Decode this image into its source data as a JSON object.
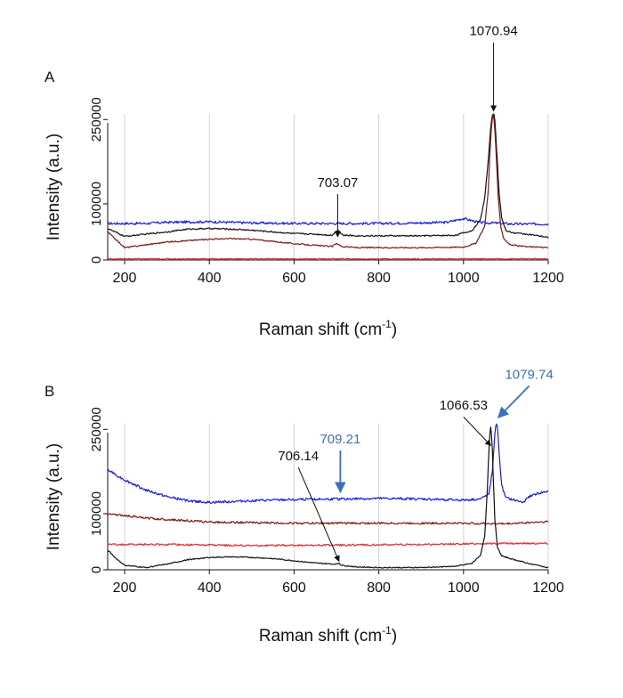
{
  "chart_data": [
    {
      "panel_label": "A",
      "type": "line",
      "xlabel": "Raman shift (cm",
      "xlabel_sup": "-1",
      "xlabel_end": ")",
      "ylabel": "Intensity (a.u.)",
      "xlim": [
        160,
        1200
      ],
      "ylim": [
        0,
        260000
      ],
      "x_ticks": [
        200,
        400,
        600,
        800,
        1000,
        1200
      ],
      "x_tick_labels": [
        "200",
        "400",
        "600",
        "800",
        "1000",
        "1200"
      ],
      "y_ticks": [
        0,
        100000,
        250000
      ],
      "y_tick_labels": [
        "0",
        "100000",
        "250000"
      ],
      "grid": "vertical",
      "series": [
        {
          "name": "blue",
          "color": "#1a1ad6",
          "x": [
            160,
            250,
            300,
            400,
            500,
            600,
            700,
            800,
            900,
            960,
            1000,
            1030,
            1050,
            1070,
            1090,
            1120,
            1150,
            1200
          ],
          "y": [
            65000,
            65000,
            67000,
            68000,
            66000,
            65000,
            65000,
            65000,
            66000,
            67000,
            74000,
            68000,
            66000,
            66000,
            65000,
            64000,
            64000,
            64000
          ],
          "noise": 2200
        },
        {
          "name": "black",
          "color": "#111111",
          "x": [
            160,
            200,
            300,
            350,
            400,
            450,
            500,
            550,
            600,
            650,
            690,
            703,
            715,
            750,
            800,
            900,
            980,
            1020,
            1040,
            1050,
            1058,
            1064,
            1068,
            1071,
            1074,
            1078,
            1084,
            1090,
            1100,
            1120,
            1150,
            1200
          ],
          "y": [
            56000,
            42000,
            50000,
            55000,
            56000,
            55000,
            53000,
            50000,
            47000,
            46000,
            44000,
            54000,
            44000,
            43000,
            43000,
            43000,
            44000,
            52000,
            72000,
            110000,
            175000,
            235000,
            258000,
            262000,
            250000,
            200000,
            120000,
            75000,
            52000,
            48000,
            46000,
            40000
          ],
          "noise": 1200
        },
        {
          "name": "darkred",
          "color": "#7a1a1a",
          "x": [
            160,
            200,
            300,
            400,
            450,
            500,
            550,
            600,
            650,
            690,
            700,
            712,
            750,
            800,
            900,
            1000,
            1030,
            1050,
            1058,
            1063,
            1067,
            1070,
            1073,
            1077,
            1082,
            1088,
            1095,
            1110,
            1140,
            1200
          ],
          "y": [
            50000,
            22000,
            32000,
            37000,
            38000,
            37000,
            33000,
            29000,
            26000,
            24000,
            30000,
            24000,
            22000,
            22000,
            22000,
            23000,
            30000,
            60000,
            120000,
            200000,
            248000,
            258000,
            245000,
            190000,
            110000,
            60000,
            38000,
            27000,
            24000,
            22000
          ],
          "noise": 1100
        },
        {
          "name": "red",
          "color": "#e23030",
          "x": [
            160,
            300,
            500,
            700,
            900,
            1100,
            1200
          ],
          "y": [
            2000,
            2000,
            2000,
            2000,
            2000,
            2000,
            2000
          ],
          "noise": 900
        }
      ],
      "annotations": [
        {
          "text": "703.07",
          "color": "#111111",
          "x": 703,
          "y": 38000,
          "label_at": [
            703,
            130000
          ]
        },
        {
          "text": "1070.94",
          "color": "#111111",
          "x": 1070.94,
          "y": 262000,
          "label_at": [
            1070.94,
            400000
          ]
        }
      ]
    },
    {
      "panel_label": "B",
      "type": "line",
      "xlabel": "Raman shift (cm",
      "xlabel_sup": "-1",
      "xlabel_end": ")",
      "ylabel": "Intensity (a.u.)",
      "xlim": [
        160,
        1200
      ],
      "ylim": [
        0,
        260000
      ],
      "x_ticks": [
        200,
        400,
        600,
        800,
        1000,
        1200
      ],
      "x_tick_labels": [
        "200",
        "400",
        "600",
        "800",
        "1000",
        "1200"
      ],
      "y_ticks": [
        0,
        100000,
        250000
      ],
      "y_tick_labels": [
        "0",
        "100000",
        "250000"
      ],
      "grid": "vertical",
      "series": [
        {
          "name": "blue",
          "color": "#1a1ad6",
          "x": [
            160,
            200,
            250,
            300,
            350,
            400,
            500,
            600,
            700,
            800,
            900,
            1000,
            1040,
            1060,
            1068,
            1073,
            1077,
            1080,
            1084,
            1090,
            1100,
            1140,
            1160,
            1200
          ],
          "y": [
            178000,
            160000,
            142000,
            130000,
            123000,
            120000,
            123000,
            125000,
            126000,
            127000,
            126000,
            124000,
            126000,
            135000,
            175000,
            232000,
            262000,
            255000,
            210000,
            150000,
            128000,
            120000,
            133000,
            140000
          ],
          "noise": 2200
        },
        {
          "name": "darkred",
          "color": "#7a1a1a",
          "x": [
            160,
            250,
            400,
            600,
            800,
            1000,
            1100,
            1200
          ],
          "y": [
            100000,
            92000,
            85000,
            83000,
            83000,
            83000,
            82000,
            86000
          ],
          "noise": 1800
        },
        {
          "name": "red",
          "color": "#e23030",
          "x": [
            160,
            300,
            500,
            700,
            900,
            1100,
            1200
          ],
          "y": [
            45000,
            45000,
            43000,
            44000,
            45000,
            47000,
            47000
          ],
          "noise": 1600
        },
        {
          "name": "black",
          "color": "#111111",
          "x": [
            160,
            180,
            200,
            250,
            300,
            350,
            400,
            450,
            500,
            550,
            600,
            650,
            700,
            706,
            712,
            750,
            800,
            900,
            980,
            1020,
            1040,
            1050,
            1056,
            1061,
            1064,
            1067,
            1070,
            1074,
            1080,
            1090,
            1110,
            1150,
            1200
          ],
          "y": [
            35000,
            20000,
            8000,
            4000,
            10000,
            18000,
            22000,
            23000,
            22000,
            20000,
            16000,
            12000,
            10000,
            12000,
            8000,
            5000,
            4000,
            4000,
            6000,
            12000,
            25000,
            60000,
            140000,
            232000,
            255000,
            235000,
            170000,
            90000,
            40000,
            25000,
            20000,
            12000,
            4000
          ],
          "noise": 900
        }
      ],
      "annotations": [
        {
          "text": "706.14",
          "color": "#111111",
          "x": 706.14,
          "y": 12000,
          "label_at": [
            610,
            195000
          ]
        },
        {
          "text": "709.21",
          "color": "#3f6fb5",
          "x": 709.21,
          "y": 135000,
          "label_at": [
            709.21,
            225000
          ]
        },
        {
          "text": "1066.53",
          "color": "#111111",
          "x": 1064.5,
          "y": 218000,
          "label_at": [
            1000,
            285000
          ]
        },
        {
          "text": "1079.74",
          "color": "#3f6fb5",
          "x": 1082,
          "y": 268000,
          "label_at": [
            1155,
            340000
          ]
        }
      ]
    }
  ]
}
